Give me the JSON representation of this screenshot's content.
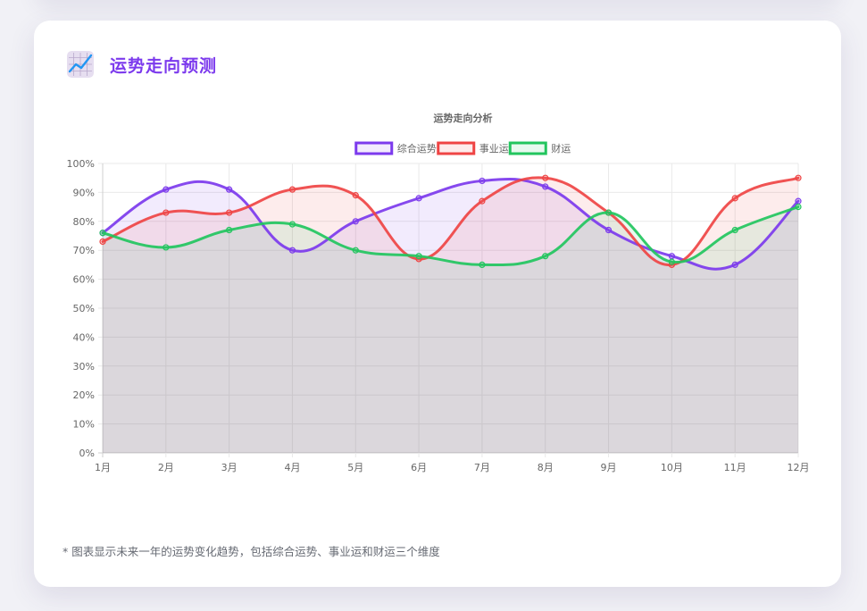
{
  "header": {
    "title": "运势走向预测",
    "icon": "chart-increasing-icon"
  },
  "note": "* 图表显示未来一年的运势变化趋势，包括综合运势、事业运和财运三个维度",
  "colors": {
    "accent": "#7c3aed",
    "overall": "#7c3aed",
    "career": "#ef4444",
    "wealth": "#22c55e",
    "card_bg": "#ffffff",
    "page_bg": "#f1f1f6"
  },
  "chart_data": {
    "type": "area",
    "title": "运势走向分析",
    "categories": [
      "1月",
      "2月",
      "3月",
      "4月",
      "5月",
      "6月",
      "7月",
      "8月",
      "9月",
      "10月",
      "11月",
      "12月"
    ],
    "series": [
      {
        "name": "综合运势",
        "color": "#7c3aed",
        "values": [
          76,
          91,
          91,
          70,
          80,
          88,
          94,
          92,
          77,
          68,
          65,
          87
        ]
      },
      {
        "name": "事业运",
        "color": "#ef4444",
        "values": [
          73,
          83,
          83,
          91,
          89,
          67,
          87,
          95,
          83,
          65,
          88,
          95
        ]
      },
      {
        "name": "财运",
        "color": "#22c55e",
        "values": [
          76,
          71,
          77,
          79,
          70,
          68,
          65,
          68,
          83,
          66,
          77,
          85
        ]
      }
    ],
    "yticks": [
      "0%",
      "10%",
      "20%",
      "30%",
      "40%",
      "50%",
      "60%",
      "70%",
      "80%",
      "90%",
      "100%"
    ],
    "ylim": [
      0,
      100
    ],
    "y_unit": "%",
    "legend_position": "top-center",
    "grid": true,
    "filled": true,
    "smooth": true
  }
}
